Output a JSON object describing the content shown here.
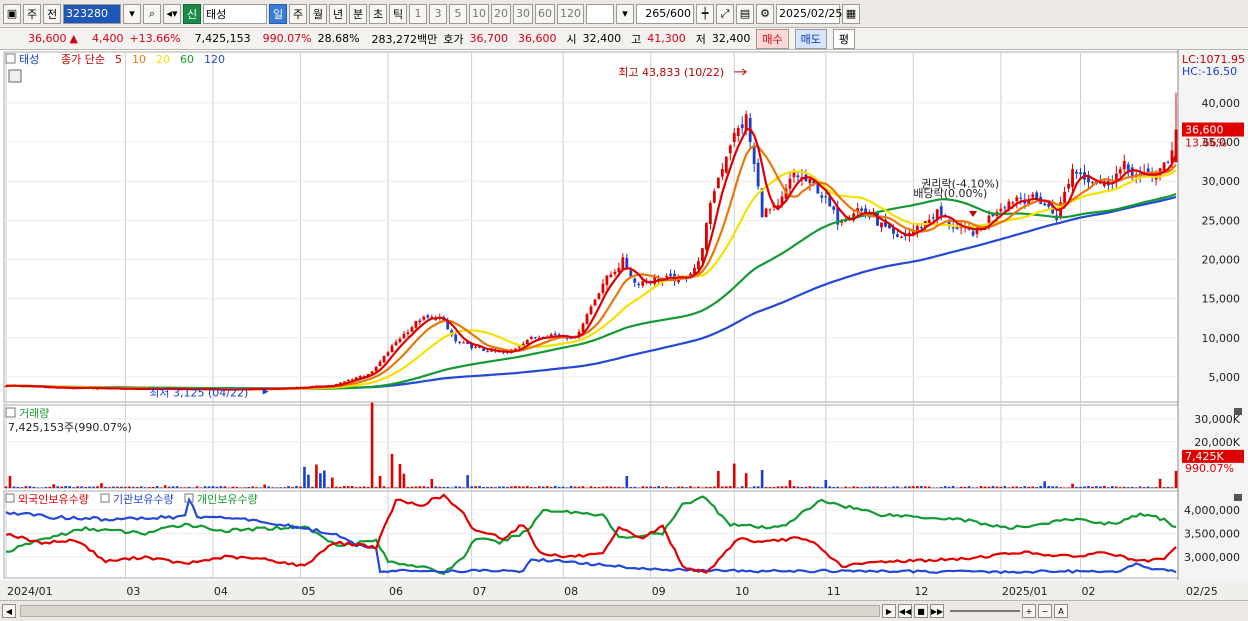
{
  "toolbar": {
    "kind1": "주",
    "kind2": "전",
    "code": "323280",
    "name": "태성",
    "new_badge": "신",
    "periods": [
      "일",
      "주",
      "월",
      "년",
      "분",
      "초",
      "틱"
    ],
    "minutes": [
      "1",
      "3",
      "5",
      "10",
      "20",
      "30",
      "60",
      "120"
    ],
    "count": "265",
    "count_total": "600",
    "date": "2025/02/25"
  },
  "quote": {
    "price": "36,600",
    "arrow": "▲",
    "change": "4,400",
    "change_pct": "+13.66%",
    "volume": "7,425,153",
    "vol_ratio": "990.07%",
    "turnover": "28.68%",
    "amount": "283,272백만",
    "ask_label": "호가",
    "ask": "36,700",
    "bid": "36,600",
    "open_label": "시",
    "open": "32,400",
    "high_label": "고",
    "high": "41,300",
    "low_label": "저",
    "low": "32,400",
    "buy": "매수",
    "sell": "매도",
    "eval": "평"
  },
  "chart_data": {
    "type": "candlestick",
    "price_legend": {
      "name": "태성",
      "label": "종가 단순",
      "ma": [
        "5",
        "10",
        "20",
        "60",
        "120"
      ]
    },
    "ma_colors": [
      "#dd0000",
      "#e8780a",
      "#f5e000",
      "#139a32",
      "#2448d8"
    ],
    "price_axis": [
      "40,000",
      "35,000",
      "30,000",
      "25,000",
      "20,000",
      "15,000",
      "10,000",
      "5,000"
    ],
    "price_axis_values": [
      40000,
      35000,
      30000,
      25000,
      20000,
      15000,
      10000,
      5000
    ],
    "price_range": [
      1800,
      46500
    ],
    "current_price": {
      "label": "36,600",
      "pct": "13.66%"
    },
    "lc": "LC:1071.95",
    "hc": "HC:-16.50",
    "annotations": {
      "max": "최고 43,833 (10/22)",
      "min": "최저 3,125 (04/22)",
      "right_issue": "권리락(-4.10%)",
      "dividend": "배당락(0.00%)"
    },
    "anchors": [
      [
        0,
        3900
      ],
      [
        14,
        3600
      ],
      [
        30,
        3500
      ],
      [
        55,
        3400
      ],
      [
        68,
        3500
      ],
      [
        82,
        3900
      ],
      [
        92,
        5600
      ],
      [
        98,
        9500
      ],
      [
        104,
        12400
      ],
      [
        109,
        12600
      ],
      [
        113,
        9500
      ],
      [
        120,
        8400
      ],
      [
        126,
        8000
      ],
      [
        131,
        9800
      ],
      [
        137,
        10400
      ],
      [
        143,
        10000
      ],
      [
        147,
        14000
      ],
      [
        150,
        17000
      ],
      [
        155,
        19800
      ],
      [
        158,
        17000
      ],
      [
        164,
        17600
      ],
      [
        170,
        17500
      ],
      [
        174,
        19500
      ],
      [
        178,
        29000
      ],
      [
        182,
        35000
      ],
      [
        186,
        38000
      ],
      [
        190,
        26000
      ],
      [
        194,
        26500
      ],
      [
        198,
        31000
      ],
      [
        204,
        29000
      ],
      [
        209,
        25000
      ],
      [
        214,
        26500
      ],
      [
        219,
        24800
      ],
      [
        224,
        22500
      ],
      [
        229,
        24000
      ],
      [
        234,
        26000
      ],
      [
        239,
        23800
      ],
      [
        244,
        23500
      ],
      [
        249,
        26500
      ],
      [
        254,
        28000
      ],
      [
        260,
        27500
      ],
      [
        264,
        25500
      ],
      [
        268,
        31500
      ],
      [
        272,
        30500
      ],
      [
        276,
        29500
      ],
      [
        281,
        31800
      ],
      [
        285,
        30400
      ],
      [
        289,
        31000
      ],
      [
        292,
        32200
      ],
      [
        294,
        36600
      ]
    ],
    "volume_legend": "거래량",
    "volume_info": "7,425,153주(990.07%)",
    "volume_axis": [
      "30,000K",
      "20,000K"
    ],
    "volume_axis_values": [
      30000,
      20000
    ],
    "volume_max": 36000,
    "volume_current": {
      "label": "7,425K",
      "pct": "990.07%"
    },
    "volume_spikes": [
      [
        1,
        5200
      ],
      [
        12,
        1600
      ],
      [
        24,
        2100
      ],
      [
        40,
        1200
      ],
      [
        65,
        1500
      ],
      [
        75,
        9200
      ],
      [
        76,
        5800
      ],
      [
        78,
        10200
      ],
      [
        79,
        6400
      ],
      [
        80,
        7600
      ],
      [
        82,
        4500
      ],
      [
        92,
        37000
      ],
      [
        94,
        5200
      ],
      [
        97,
        14800
      ],
      [
        99,
        10400
      ],
      [
        100,
        6200
      ],
      [
        107,
        3900
      ],
      [
        116,
        5600
      ],
      [
        156,
        5200
      ],
      [
        179,
        7400
      ],
      [
        183,
        10600
      ],
      [
        186,
        6400
      ],
      [
        190,
        7800
      ],
      [
        197,
        3400
      ],
      [
        206,
        3500
      ],
      [
        261,
        2900
      ],
      [
        268,
        1900
      ],
      [
        290,
        4000
      ],
      [
        294,
        7425
      ]
    ],
    "holdings_legend": [
      "외국인보유수량",
      "기관보유수량",
      "개인보유수량"
    ],
    "holdings_colors": [
      "#e00000",
      "#2448d8",
      "#139a32"
    ],
    "holdings_axis": [
      "4,000,000",
      "3,500,000",
      "3,000,000"
    ],
    "holdings_axis_values": [
      4000000,
      3500000,
      3000000
    ],
    "holdings_range": [
      2550000,
      4400000
    ],
    "foreign": [
      [
        0,
        3500000
      ],
      [
        8,
        3300000
      ],
      [
        18,
        3350000
      ],
      [
        25,
        2900000
      ],
      [
        35,
        3000000
      ],
      [
        45,
        2850000
      ],
      [
        55,
        3000000
      ],
      [
        65,
        2950000
      ],
      [
        75,
        2800000
      ],
      [
        82,
        3300000
      ],
      [
        90,
        3250000
      ],
      [
        93,
        3200000
      ],
      [
        98,
        4200000
      ],
      [
        104,
        4100000
      ],
      [
        110,
        4300000
      ],
      [
        115,
        3900000
      ],
      [
        117,
        3600000
      ],
      [
        125,
        3400000
      ],
      [
        130,
        3700000
      ],
      [
        134,
        3100000
      ],
      [
        140,
        3000000
      ],
      [
        150,
        3050000
      ],
      [
        154,
        3600000
      ],
      [
        160,
        3400000
      ],
      [
        165,
        3650000
      ],
      [
        170,
        2800000
      ],
      [
        176,
        2650000
      ],
      [
        184,
        3400000
      ],
      [
        190,
        3300000
      ],
      [
        198,
        3400000
      ],
      [
        203,
        3300000
      ],
      [
        210,
        2800000
      ],
      [
        220,
        2900000
      ],
      [
        240,
        2950000
      ],
      [
        255,
        3100000
      ],
      [
        268,
        3000000
      ],
      [
        276,
        3100000
      ],
      [
        285,
        2900000
      ],
      [
        291,
        2950000
      ],
      [
        294,
        3200000
      ]
    ],
    "institution": [
      [
        0,
        3950000
      ],
      [
        10,
        3850000
      ],
      [
        25,
        3800000
      ],
      [
        45,
        3850000
      ],
      [
        46,
        4250000
      ],
      [
        48,
        3850000
      ],
      [
        60,
        3800000
      ],
      [
        75,
        3600000
      ],
      [
        82,
        3500000
      ],
      [
        88,
        3250000
      ],
      [
        93,
        3200000
      ],
      [
        94,
        2700000
      ],
      [
        130,
        2700000
      ],
      [
        132,
        2950000
      ],
      [
        140,
        2900000
      ],
      [
        160,
        2750000
      ],
      [
        176,
        2700000
      ],
      [
        200,
        2700000
      ],
      [
        250,
        2680000
      ],
      [
        280,
        2700000
      ],
      [
        284,
        2850000
      ],
      [
        287,
        2750000
      ],
      [
        294,
        2700000
      ]
    ],
    "individual": [
      [
        0,
        3100000
      ],
      [
        8,
        3350000
      ],
      [
        20,
        3600000
      ],
      [
        35,
        3500000
      ],
      [
        45,
        3700000
      ],
      [
        55,
        3550000
      ],
      [
        65,
        3600000
      ],
      [
        75,
        3650000
      ],
      [
        83,
        3250000
      ],
      [
        93,
        3350000
      ],
      [
        96,
        2900000
      ],
      [
        104,
        2800000
      ],
      [
        110,
        2650000
      ],
      [
        115,
        3000000
      ],
      [
        118,
        3400000
      ],
      [
        124,
        3300000
      ],
      [
        131,
        3550000
      ],
      [
        135,
        4000000
      ],
      [
        150,
        3900000
      ],
      [
        154,
        3400000
      ],
      [
        165,
        3500000
      ],
      [
        170,
        4100000
      ],
      [
        175,
        4300000
      ],
      [
        182,
        3700000
      ],
      [
        192,
        3600000
      ],
      [
        196,
        3700000
      ],
      [
        205,
        4200000
      ],
      [
        220,
        3900000
      ],
      [
        240,
        3800000
      ],
      [
        252,
        3600000
      ],
      [
        268,
        3800000
      ],
      [
        278,
        3700000
      ],
      [
        285,
        3900000
      ],
      [
        291,
        3800000
      ],
      [
        294,
        3600000
      ]
    ],
    "date_axis": [
      "2024/01",
      "03",
      "04",
      "05",
      "06",
      "07",
      "08",
      "09",
      "10",
      "11",
      "12",
      "2025/01",
      "02"
    ],
    "date_axis_idx": [
      0,
      30,
      52,
      74,
      96,
      117,
      140,
      162,
      183,
      206,
      228,
      250,
      270
    ],
    "last_date": "02/25",
    "n_bars": 295
  },
  "statusbar": {
    "buttons": [
      "▶",
      "◀◀",
      "■",
      "▶▶",
      "+",
      "−",
      "A"
    ]
  }
}
